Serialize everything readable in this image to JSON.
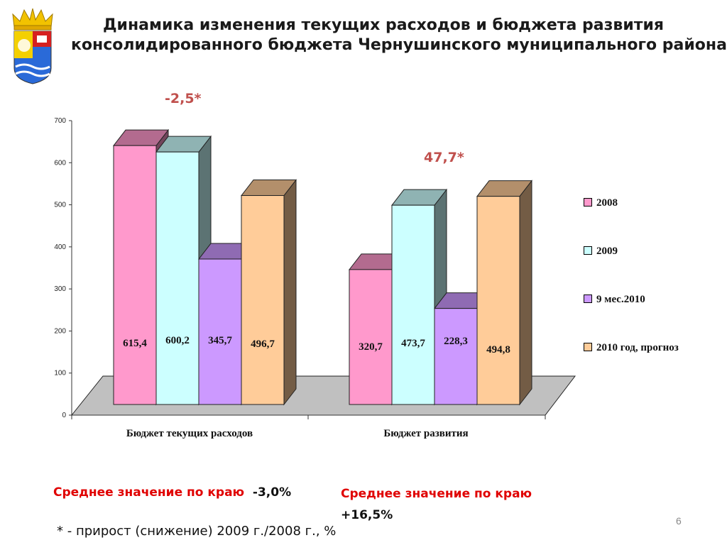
{
  "title_line1": "Динамика изменения текущих расходов и бюджета развития",
  "title_line2": "консолидированного бюджета Чернушинского муниципального района",
  "growth_current": "-2,5*",
  "growth_development": "47,7*",
  "avg_current_label": "Среднее значение по краю",
  "avg_current_value": "-3,0%",
  "avg_development_label": "Среднее значение по краю",
  "avg_development_value": "+16,5%",
  "footnote": "* - прирост (снижение) 2009 г./2008 г., %",
  "page_number": "6",
  "chart_data": {
    "type": "bar",
    "categories": [
      "Бюджет текущих расходов",
      "Бюджет развития"
    ],
    "series": [
      {
        "name": "2008",
        "values": [
          615.4,
          320.7
        ],
        "labels": [
          "615,4",
          "320,7"
        ],
        "color": "#ff99cc"
      },
      {
        "name": "2009",
        "values": [
          600.2,
          473.7
        ],
        "labels": [
          "600,2",
          "473,7"
        ],
        "color": "#ccffff"
      },
      {
        "name": "9 мес.2010",
        "values": [
          345.7,
          228.3
        ],
        "labels": [
          "345,7",
          "228,3"
        ],
        "color": "#cc99ff"
      },
      {
        "name": "2010 год, прогноз",
        "values": [
          496.7,
          494.8
        ],
        "labels": [
          "496,7",
          "494,8"
        ],
        "color": "#ffcc99"
      }
    ],
    "ylim": [
      0,
      700
    ],
    "yticks": [
      0,
      100,
      200,
      300,
      400,
      500,
      600,
      700
    ],
    "legend_position": "right",
    "grid": false
  }
}
